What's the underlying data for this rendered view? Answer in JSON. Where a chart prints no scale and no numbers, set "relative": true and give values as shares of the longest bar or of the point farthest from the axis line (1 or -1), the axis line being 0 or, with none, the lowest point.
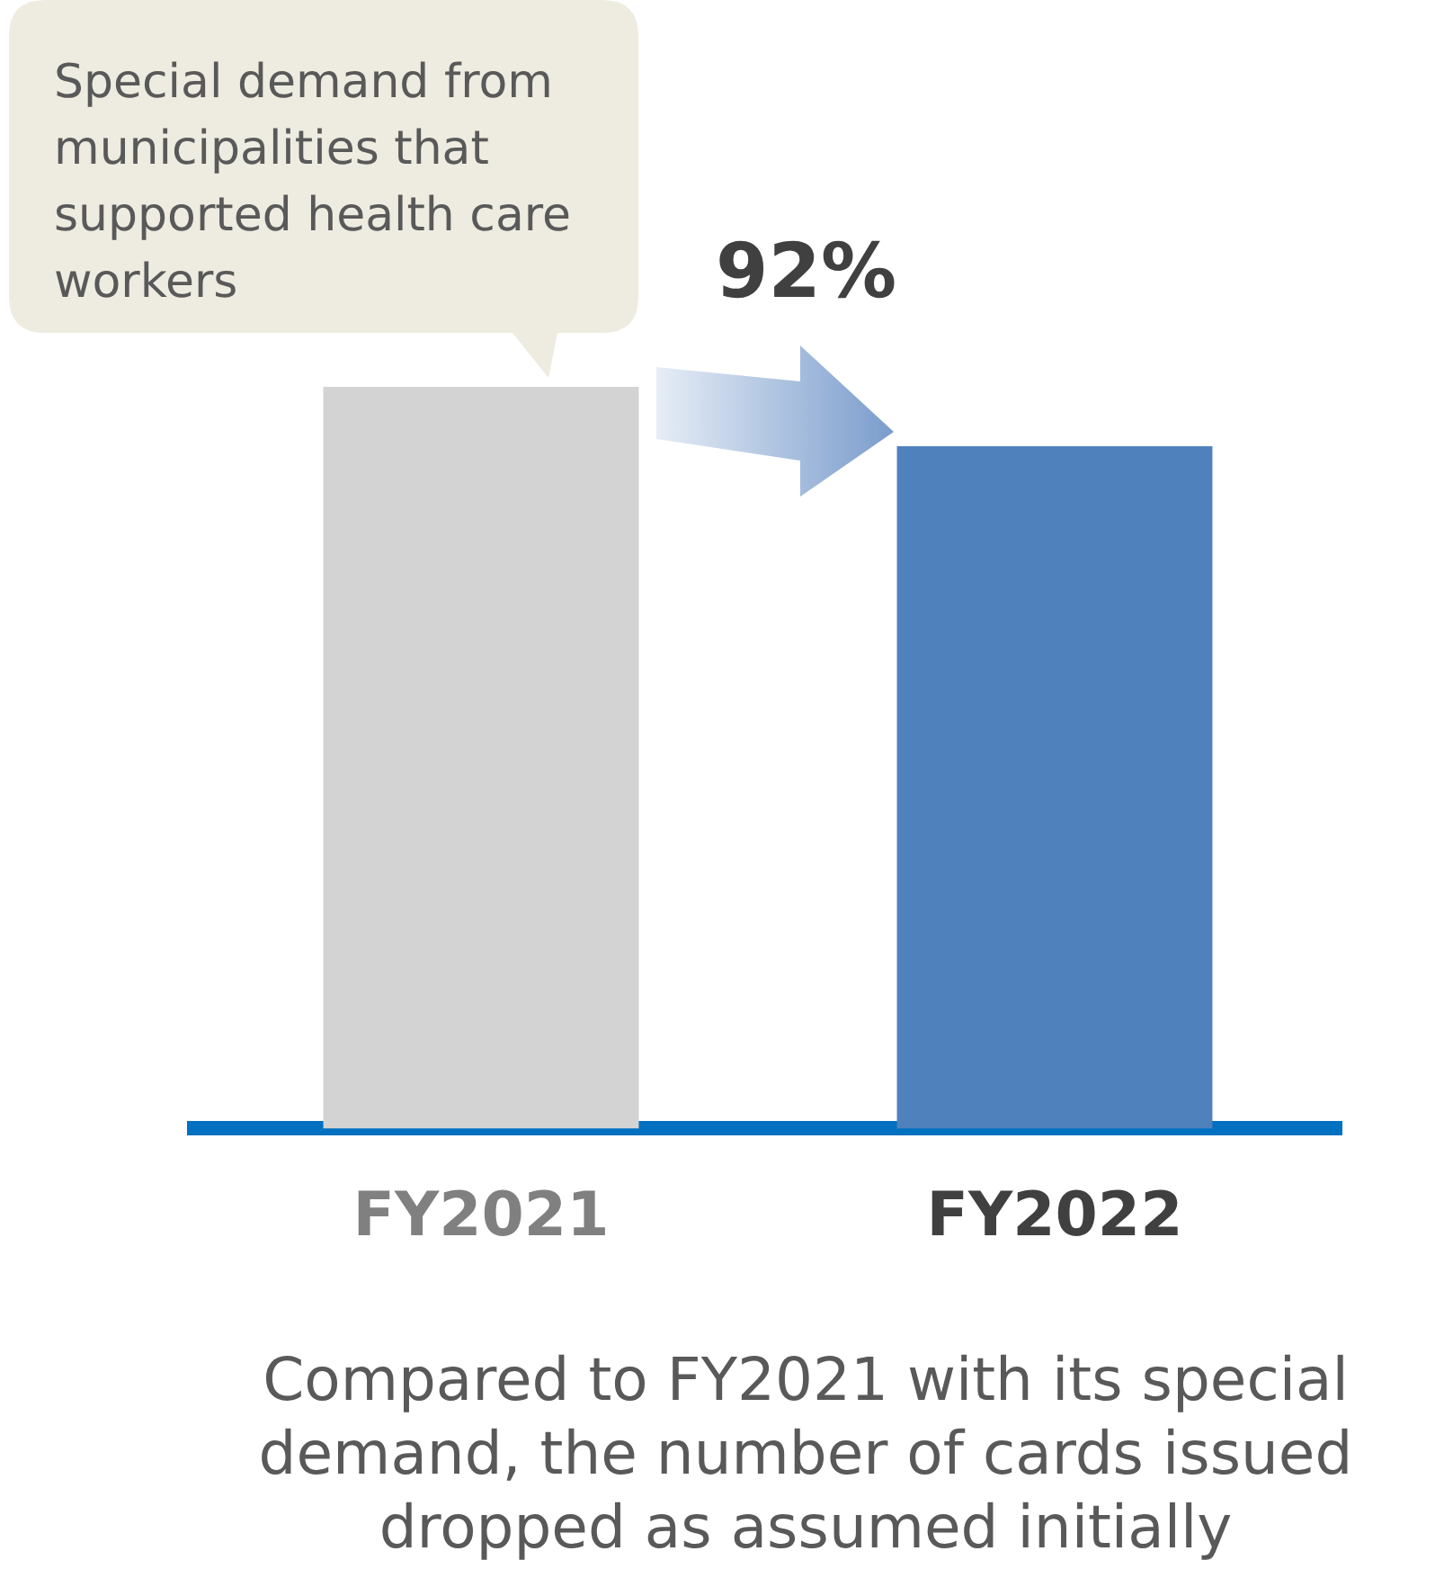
{
  "chart_data": {
    "type": "bar",
    "relative": true,
    "categories": [
      "FY2021",
      "FY2022"
    ],
    "values": [
      1,
      0.92
    ],
    "colors": [
      "#d3d3d3",
      "#4f81bd"
    ],
    "annotations": [
      "Special demand from municipalities that supported health care workers",
      "92%",
      "Compared to FY2021 with its special demand, the number of cards issued dropped as assumed initially"
    ]
  }
}
